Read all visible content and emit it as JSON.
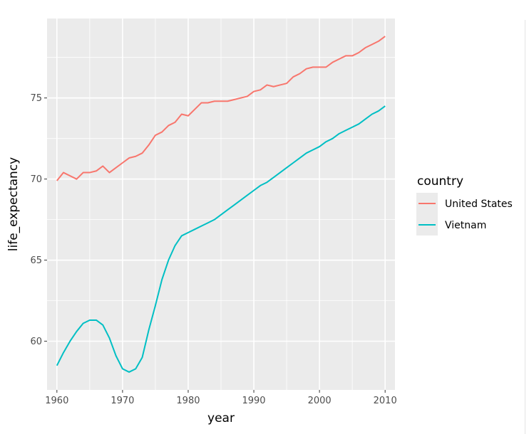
{
  "chart_data": {
    "type": "line",
    "title": "",
    "xlabel": "year",
    "ylabel": "life_expectancy",
    "xlim": [
      1958.5,
      2011.5
    ],
    "ylim": [
      57.0,
      79.9
    ],
    "xticks": [
      1960,
      1970,
      1980,
      1990,
      2000,
      2010
    ],
    "xtick_labels": [
      "1960",
      "1970",
      "1980",
      "1990",
      "2000",
      "2010"
    ],
    "yticks": [
      60,
      65,
      70,
      75
    ],
    "ytick_labels": [
      "60",
      "65",
      "70",
      "75"
    ],
    "grid": true,
    "legend": {
      "title": "country",
      "position": "right"
    },
    "x": [
      1960,
      1961,
      1962,
      1963,
      1964,
      1965,
      1966,
      1967,
      1968,
      1969,
      1970,
      1971,
      1972,
      1973,
      1974,
      1975,
      1976,
      1977,
      1978,
      1979,
      1980,
      1981,
      1982,
      1983,
      1984,
      1985,
      1986,
      1987,
      1988,
      1989,
      1990,
      1991,
      1992,
      1993,
      1994,
      1995,
      1996,
      1997,
      1998,
      1999,
      2000,
      2001,
      2002,
      2003,
      2004,
      2005,
      2006,
      2007,
      2008,
      2009,
      2010
    ],
    "series": [
      {
        "name": "United States",
        "color": "#F8766D",
        "values": [
          69.9,
          70.4,
          70.2,
          70.0,
          70.4,
          70.4,
          70.5,
          70.8,
          70.4,
          70.7,
          71.0,
          71.3,
          71.4,
          71.6,
          72.1,
          72.7,
          72.9,
          73.3,
          73.5,
          74.0,
          73.9,
          74.3,
          74.7,
          74.7,
          74.8,
          74.8,
          74.8,
          74.9,
          75.0,
          75.1,
          75.4,
          75.5,
          75.8,
          75.7,
          75.8,
          75.9,
          76.3,
          76.5,
          76.8,
          76.9,
          76.9,
          76.9,
          77.2,
          77.4,
          77.6,
          77.6,
          77.8,
          78.1,
          78.3,
          78.5,
          78.8
        ]
      },
      {
        "name": "Vietnam",
        "color": "#00BFC4",
        "values": [
          58.5,
          59.3,
          60.0,
          60.6,
          61.1,
          61.3,
          61.3,
          61.0,
          60.2,
          59.1,
          58.3,
          58.1,
          58.3,
          59.0,
          60.7,
          62.2,
          63.8,
          65.0,
          65.9,
          66.5,
          66.7,
          66.9,
          67.1,
          67.3,
          67.5,
          67.8,
          68.1,
          68.4,
          68.7,
          69.0,
          69.3,
          69.6,
          69.8,
          70.1,
          70.4,
          70.7,
          71.0,
          71.3,
          71.6,
          71.8,
          72.0,
          72.3,
          72.5,
          72.8,
          73.0,
          73.2,
          73.4,
          73.7,
          74.0,
          74.2,
          74.5
        ]
      }
    ]
  }
}
